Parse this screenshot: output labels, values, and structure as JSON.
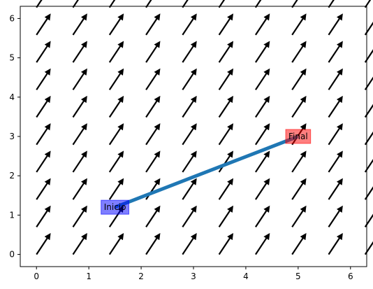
{
  "chart_data": {
    "type": "quiver",
    "title": "",
    "xlabel": "",
    "ylabel": "",
    "xlim": [
      -0.31,
      6.31
    ],
    "ylim": [
      -0.31,
      6.31
    ],
    "xticks": [
      "0",
      "1",
      "2",
      "3",
      "4",
      "5",
      "6"
    ],
    "yticks": [
      "0",
      "1",
      "2",
      "3",
      "4",
      "5",
      "6"
    ],
    "grid": false,
    "vector_field": {
      "x_start": 0,
      "x_end": 6.28,
      "x_count": 10,
      "y_start": 0,
      "y_end": 6.28,
      "y_count": 10,
      "u": 1,
      "v": 1.5,
      "color": "#000000"
    },
    "path": {
      "x": [
        1.5,
        5.0
      ],
      "y": [
        1.2,
        3.0
      ],
      "color": "#1f77b4"
    },
    "annotations": [
      {
        "text": "Inicio",
        "x": 1.5,
        "y": 1.2,
        "box_color": "#0000ff",
        "box_alpha": 0.5
      },
      {
        "text": "Final",
        "x": 5.0,
        "y": 3.0,
        "box_color": "#ff0000",
        "box_alpha": 0.5
      }
    ]
  }
}
